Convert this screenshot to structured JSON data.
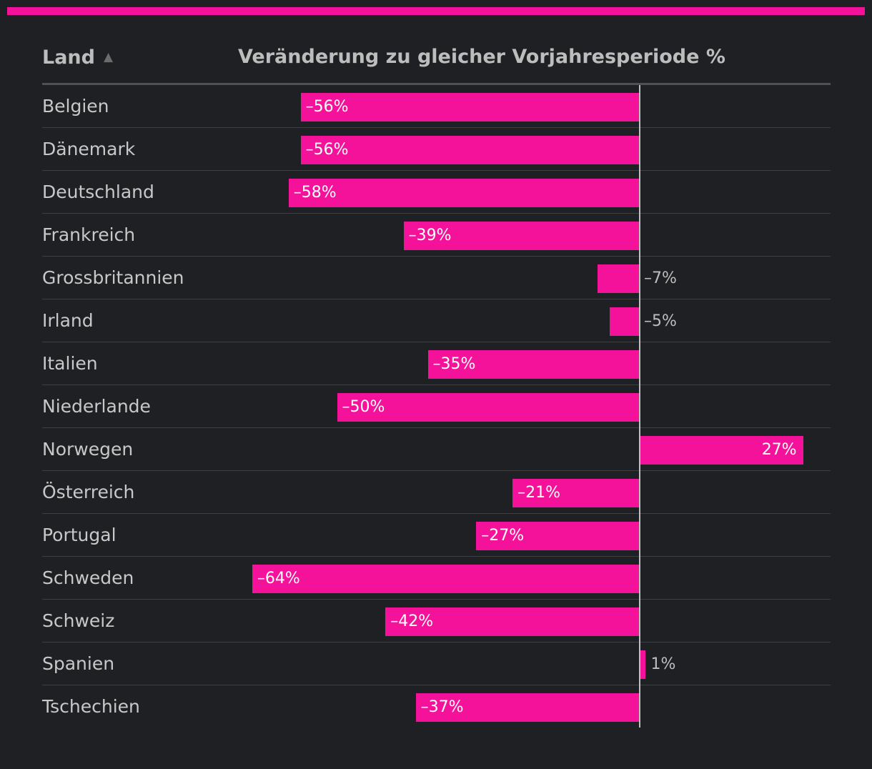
{
  "colors": {
    "accent": "#f5129a",
    "label_inside": "#ffffff",
    "label_outside": "#bdbdbd"
  },
  "header": {
    "land_label": "Land",
    "sort_icon": "▲",
    "change_label": "Veränderung zu gleicher Vorjahresperiode %"
  },
  "chart_data": {
    "type": "bar",
    "orientation": "horizontal",
    "title": "Veränderung zu gleicher Vorjahresperiode %",
    "categories": [
      "Belgien",
      "Dänemark",
      "Deutschland",
      "Frankreich",
      "Grossbritannien",
      "Irland",
      "Italien",
      "Niederlande",
      "Norwegen",
      "Österreich",
      "Portugal",
      "Schweden",
      "Schweiz",
      "Spanien",
      "Tschechien"
    ],
    "values": [
      -56,
      -56,
      -58,
      -39,
      -7,
      -5,
      -35,
      -50,
      27,
      -21,
      -27,
      -64,
      -42,
      1,
      -37
    ],
    "value_labels": [
      "–56%",
      "–56%",
      "–58%",
      "–39%",
      "–7%",
      "–5%",
      "–35%",
      "–50%",
      "27%",
      "–21%",
      "–27%",
      "–64%",
      "–42%",
      "1%",
      "–37%"
    ],
    "xlim": [
      -64,
      31
    ],
    "xlabel": "",
    "ylabel": "Land"
  }
}
